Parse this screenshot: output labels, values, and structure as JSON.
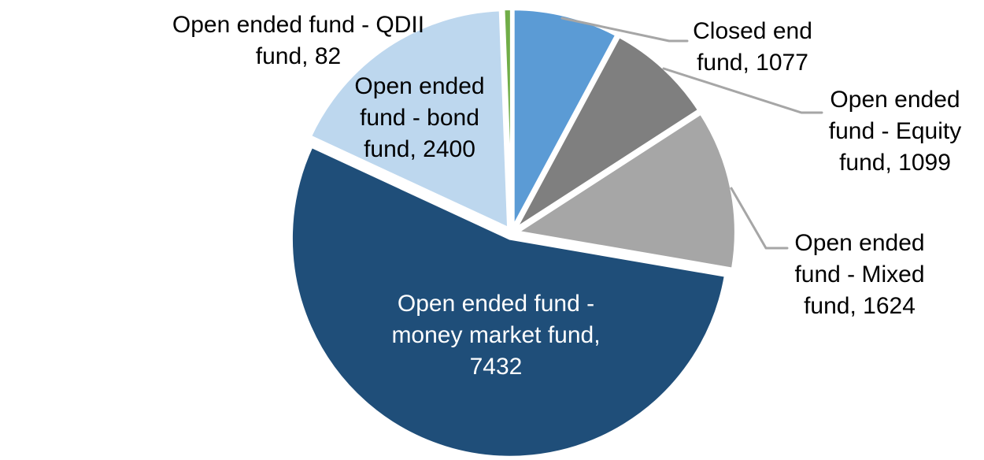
{
  "chart_data": {
    "type": "pie",
    "title": "",
    "legend": "none",
    "background_color": "#FFFFFF",
    "leader_line_color": "#A6A6A6",
    "categories": [
      "Closed end fund",
      "Open ended fund - Equity fund",
      "Open ended fund - Mixed fund",
      "Open ended fund - money market fund",
      "Open ended fund - bond fund",
      "Open ended fund - QDII fund"
    ],
    "values": [
      1077,
      1099,
      1624,
      7432,
      2400,
      82
    ],
    "slices": [
      {
        "label": "Closed end fund",
        "value": 1077,
        "color": "#5B9BD5",
        "label_color": "#000000",
        "label_lines": [
          "Closed end",
          "fund, 1077"
        ]
      },
      {
        "label": "Open ended fund - Equity fund",
        "value": 1099,
        "color": "#7F7F7F",
        "label_color": "#000000",
        "label_lines": [
          "Open ended",
          "fund - Equity",
          "fund, 1099"
        ]
      },
      {
        "label": "Open ended fund - Mixed fund",
        "value": 1624,
        "color": "#A6A6A6",
        "label_color": "#000000",
        "label_lines": [
          "Open ended",
          "fund - Mixed",
          "fund, 1624"
        ]
      },
      {
        "label": "Open ended fund - money market fund",
        "value": 7432,
        "color": "#1F4E79",
        "label_color": "#FFFFFF",
        "label_lines": [
          "Open ended fund -",
          "money market fund,",
          "7432"
        ]
      },
      {
        "label": "Open ended fund - bond fund",
        "value": 2400,
        "color": "#BDD7EE",
        "label_color": "#000000",
        "label_lines": [
          "Open ended",
          "fund - bond",
          "fund, 2400"
        ]
      },
      {
        "label": "Open ended fund - QDII fund",
        "value": 82,
        "color": "#70AD47",
        "label_color": "#000000",
        "label_lines": [
          "Open ended fund - QDII",
          "fund, 82"
        ]
      }
    ],
    "layout_hints": {
      "start_angle_deg": 0,
      "direction": "clockwise",
      "data_labels": "outside with leader lines; money market label inside slice"
    }
  }
}
